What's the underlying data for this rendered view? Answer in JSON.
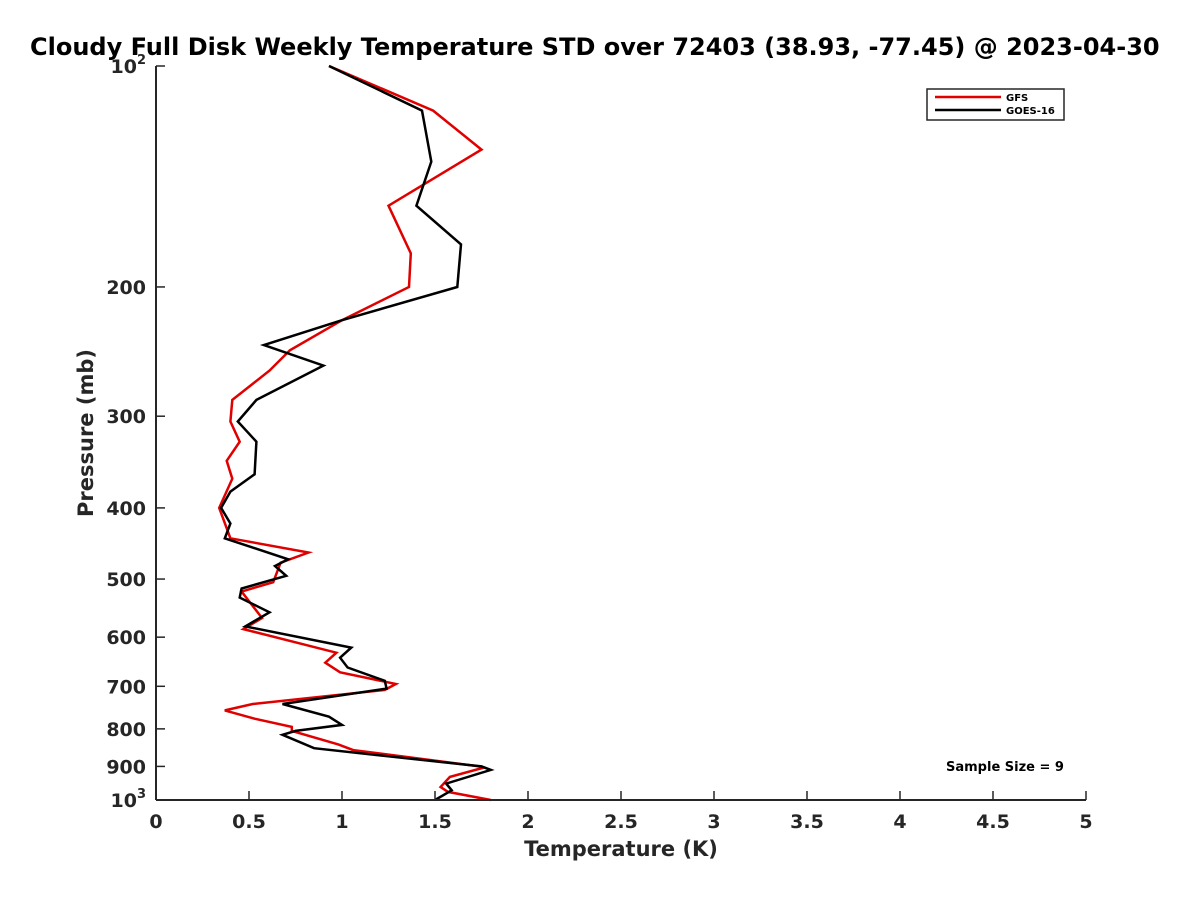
{
  "chart_data": {
    "type": "line",
    "title": "Cloudy Full Disk Weekly Temperature STD over 72403 (38.93, -77.45) @ 2023-04-30",
    "xlabel": "Temperature (K)",
    "ylabel": "Pressure (mb)",
    "xlim": [
      0,
      5
    ],
    "ylim": [
      100,
      1000
    ],
    "y_scale": "log",
    "y_reversed": true,
    "grid": false,
    "legend_position": "top-right",
    "x_ticks": [
      "0",
      "0.5",
      "1",
      "1.5",
      "2",
      "2.5",
      "3",
      "3.5",
      "4",
      "4.5",
      "5"
    ],
    "y_ticks": [
      {
        "value": 100,
        "base": "10",
        "exp": "2"
      },
      {
        "value": 200,
        "label": "200"
      },
      {
        "value": 300,
        "label": "300"
      },
      {
        "value": 400,
        "label": "400"
      },
      {
        "value": 500,
        "label": "500"
      },
      {
        "value": 600,
        "label": "600"
      },
      {
        "value": 700,
        "label": "700"
      },
      {
        "value": 800,
        "label": "800"
      },
      {
        "value": 900,
        "label": "900"
      },
      {
        "value": 1000,
        "base": "10",
        "exp": "3"
      }
    ],
    "annotation": "Sample Size = 9",
    "series": [
      {
        "name": "GFS",
        "color": "#e00000",
        "points": [
          [
            0.93,
            100
          ],
          [
            1.49,
            115
          ],
          [
            1.75,
            130
          ],
          [
            1.25,
            155
          ],
          [
            1.37,
            180
          ],
          [
            1.36,
            200
          ],
          [
            1.0,
            222
          ],
          [
            0.72,
            244
          ],
          [
            0.61,
            260
          ],
          [
            0.41,
            285
          ],
          [
            0.4,
            305
          ],
          [
            0.45,
            325
          ],
          [
            0.38,
            345
          ],
          [
            0.41,
            365
          ],
          [
            0.34,
            400
          ],
          [
            0.4,
            440
          ],
          [
            0.82,
            460
          ],
          [
            0.67,
            475
          ],
          [
            0.63,
            505
          ],
          [
            0.46,
            520
          ],
          [
            0.57,
            565
          ],
          [
            0.47,
            585
          ],
          [
            0.97,
            630
          ],
          [
            0.91,
            650
          ],
          [
            0.99,
            670
          ],
          [
            1.29,
            695
          ],
          [
            1.23,
            708
          ],
          [
            0.52,
            740
          ],
          [
            0.37,
            755
          ],
          [
            0.53,
            775
          ],
          [
            0.73,
            795
          ],
          [
            0.73,
            805
          ],
          [
            0.98,
            840
          ],
          [
            1.06,
            855
          ],
          [
            1.74,
            900
          ],
          [
            1.75,
            905
          ],
          [
            1.58,
            930
          ],
          [
            1.53,
            960
          ],
          [
            1.57,
            975
          ],
          [
            1.8,
            1000
          ]
        ]
      },
      {
        "name": "GOES-16",
        "color": "#000000",
        "points": [
          [
            0.93,
            100
          ],
          [
            1.43,
            115
          ],
          [
            1.48,
            135
          ],
          [
            1.4,
            155
          ],
          [
            1.64,
            175
          ],
          [
            1.62,
            200
          ],
          [
            1.0,
            222
          ],
          [
            0.58,
            240
          ],
          [
            0.9,
            256
          ],
          [
            0.54,
            285
          ],
          [
            0.44,
            305
          ],
          [
            0.54,
            325
          ],
          [
            0.53,
            360
          ],
          [
            0.4,
            380
          ],
          [
            0.35,
            400
          ],
          [
            0.4,
            420
          ],
          [
            0.37,
            440
          ],
          [
            0.71,
            470
          ],
          [
            0.64,
            480
          ],
          [
            0.7,
            495
          ],
          [
            0.46,
            515
          ],
          [
            0.45,
            530
          ],
          [
            0.61,
            555
          ],
          [
            0.48,
            580
          ],
          [
            1.05,
            620
          ],
          [
            0.99,
            640
          ],
          [
            1.03,
            660
          ],
          [
            1.23,
            688
          ],
          [
            1.24,
            705
          ],
          [
            0.68,
            740
          ],
          [
            0.93,
            770
          ],
          [
            1.0,
            790
          ],
          [
            0.75,
            805
          ],
          [
            0.68,
            815
          ],
          [
            0.85,
            850
          ],
          [
            1.75,
            900
          ],
          [
            1.8,
            910
          ],
          [
            1.56,
            950
          ],
          [
            1.59,
            970
          ],
          [
            1.5,
            1000
          ]
        ]
      }
    ]
  }
}
